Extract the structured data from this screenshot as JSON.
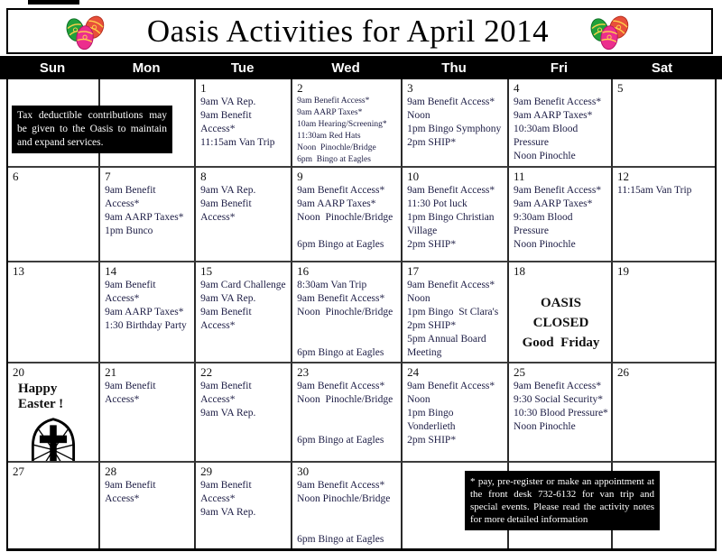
{
  "title": "Oasis Activities for April 2014",
  "day_headers": [
    "Sun",
    "Mon",
    "Tue",
    "Wed",
    "Thu",
    "Fri",
    "Sat"
  ],
  "notes": {
    "tax": "Tax deductible contributions may be given to the Oasis to maintain and expand  services.",
    "footnote": "* pay, pre-register or make an appointment at the front desk 732-6132 for van trip and special events.  Please read the activity notes for more detailed    information"
  },
  "icons": {
    "eggs": "easter-eggs-icon",
    "window": "easter-cross-window-icon",
    "egg_colors": {
      "green": "#21a13b",
      "pink": "#ec2e8d",
      "red": "#e8503a",
      "gold": "#ffd24a"
    }
  },
  "weeks": [
    [
      {
        "date": "",
        "events": []
      },
      {
        "date": "",
        "events": []
      },
      {
        "date": "1",
        "events": [
          "9am VA Rep.",
          "9am Benefit Access*",
          "11:15am Van Trip"
        ]
      },
      {
        "date": "2",
        "small": true,
        "events": [
          "9am Benefit Access*",
          "9am AARP Taxes*",
          "10am Hearing/Screening*",
          "11:30am Red Hats",
          "Noon  Pinochle/Bridge",
          "6pm  Bingo at Eagles"
        ]
      },
      {
        "date": "3",
        "events": [
          "9am Benefit Access*",
          "Noon",
          "1pm Bingo Symphony",
          "2pm SHIP*"
        ]
      },
      {
        "date": "4",
        "events": [
          "9am Benefit Access*",
          "9am AARP Taxes*",
          "10:30am Blood Pressure",
          "Noon Pinochle"
        ]
      },
      {
        "date": "5",
        "events": []
      }
    ],
    [
      {
        "date": "6",
        "events": []
      },
      {
        "date": "7",
        "events": [
          "9am Benefit Access*",
          "9am AARP Taxes*",
          "1pm Bunco"
        ]
      },
      {
        "date": "8",
        "events": [
          "9am VA Rep.",
          "9am Benefit Access*"
        ]
      },
      {
        "date": "9",
        "events": [
          "9am Benefit Access*",
          "9am AARP Taxes*",
          "Noon  Pinochle/Bridge",
          "",
          "6pm Bingo at Eagles"
        ]
      },
      {
        "date": "10",
        "events": [
          "9am Benefit Access*",
          "11:30 Pot luck",
          "1pm Bingo Christian Village",
          "2pm SHIP*"
        ]
      },
      {
        "date": "11",
        "events": [
          "9am Benefit Access*",
          "9am AARP Taxes*",
          "9:30am Blood Pressure",
          "Noon Pinochle"
        ]
      },
      {
        "date": "12",
        "events": [
          "11:15am Van Trip"
        ]
      }
    ],
    [
      {
        "date": "13",
        "events": []
      },
      {
        "date": "14",
        "events": [
          "9am Benefit Access*",
          "9am AARP Taxes*",
          "1:30 Birthday Party"
        ]
      },
      {
        "date": "15",
        "events": [
          "9am Card Challenge",
          "9am VA Rep.",
          "9am Benefit Access*"
        ]
      },
      {
        "date": "16",
        "events": [
          "8:30am Van Trip",
          "9am Benefit Access*",
          "Noon  Pinochle/Bridge",
          "",
          "",
          "6pm Bingo at Eagles"
        ]
      },
      {
        "date": "17",
        "events": [
          "9am Benefit Access*",
          "Noon",
          "1pm Bingo  St Clara's",
          "2pm SHIP*",
          "5pm Annual Board Meeting"
        ]
      },
      {
        "date": "18",
        "closed": [
          "OASIS CLOSED",
          "Good  Friday"
        ],
        "events": []
      },
      {
        "date": "19",
        "events": []
      }
    ],
    [
      {
        "date": "20",
        "easter": "Happy Easter !",
        "events": []
      },
      {
        "date": "21",
        "events": [
          "9am Benefit Access*"
        ]
      },
      {
        "date": "22",
        "events": [
          "9am Benefit Access*",
          "9am VA Rep."
        ]
      },
      {
        "date": "23",
        "events": [
          "9am Benefit Access*",
          "Noon  Pinochle/Bridge",
          "",
          "",
          "6pm Bingo at Eagles"
        ]
      },
      {
        "date": "24",
        "events": [
          "9am Benefit Access*",
          "Noon",
          "1pm Bingo  Vonderlieth",
          "2pm SHIP*"
        ]
      },
      {
        "date": "25",
        "events": [
          "9am Benefit Access*",
          "9:30 Social Security*",
          "10:30 Blood Pressure*",
          "Noon Pinochle"
        ]
      },
      {
        "date": "26",
        "events": []
      }
    ],
    [
      {
        "date": "27",
        "events": []
      },
      {
        "date": "28",
        "events": [
          "9am Benefit Access*"
        ]
      },
      {
        "date": "29",
        "events": [
          "9am Benefit Access*",
          "9am VA Rep."
        ]
      },
      {
        "date": "30",
        "events": [
          "9am Benefit Access*",
          "Noon Pinochle/Bridge",
          "",
          "",
          "6pm Bingo at Eagles"
        ]
      },
      {
        "date": "",
        "events": []
      },
      {
        "date": "",
        "events": []
      },
      {
        "date": "",
        "events": []
      }
    ]
  ]
}
